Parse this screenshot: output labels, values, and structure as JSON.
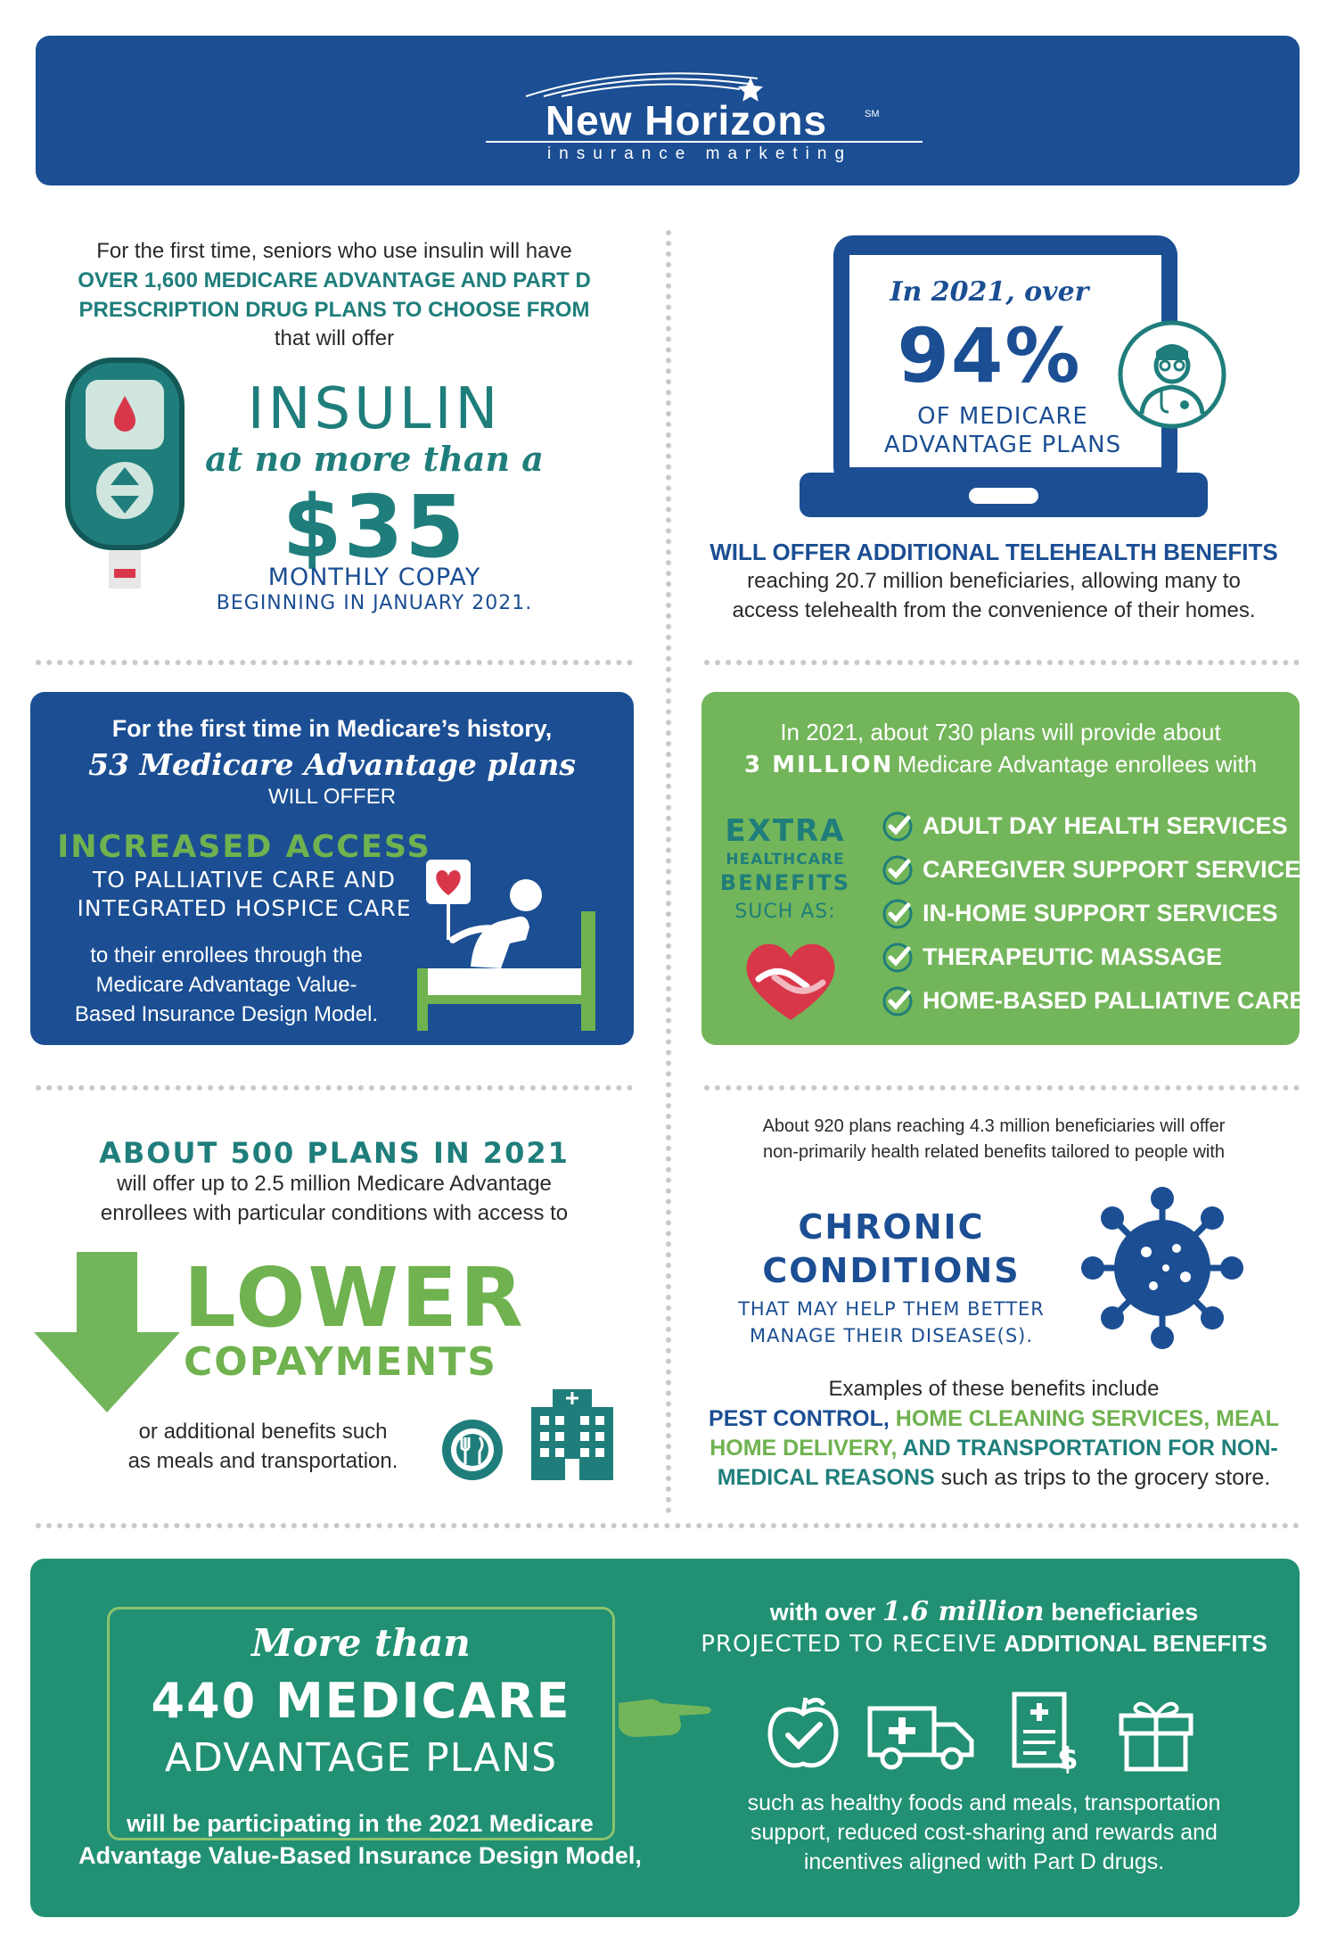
{
  "header": {
    "brand": "New Horizons",
    "sm": "SM",
    "tagline": "insurance marketing"
  },
  "insulin": {
    "intro1": "For the first time, seniors who use insulin will have",
    "highlight1": "OVER 1,600 MEDICARE ADVANTAGE AND PART D",
    "highlight2": "PRESCRIPTION DRUG PLANS TO CHOOSE FROM",
    "intro2": "that will offer",
    "big": "INSULIN",
    "script": "at no more than a",
    "price": "$35",
    "copay": "MONTHLY COPAY",
    "beginning": "BEGINNING IN JANUARY 2021."
  },
  "telehealth": {
    "year_line": "In 2021, over",
    "percent": "94%",
    "sub1": "OF MEDICARE",
    "sub2": "ADVANTAGE PLANS",
    "headline": "WILL OFFER ADDITIONAL TELEHEALTH BENEFITS",
    "body1": "reaching 20.7 million beneficiaries, allowing many to",
    "body2": "access telehealth from the convenience of their homes."
  },
  "palliative": {
    "line1": "For the first time in Medicare’s history,",
    "script": "53 Medicare Advantage plans",
    "will_offer": "WILL OFFER",
    "headline": "INCREASED ACCESS",
    "sub1": "TO PALLIATIVE CARE AND",
    "sub2": "INTEGRATED HOSPICE CARE",
    "body1": "to their enrollees through the",
    "body2": "Medicare Advantage Value-",
    "body3": "Based Insurance Design Model."
  },
  "extra": {
    "line1": "In 2021, about 730 plans will provide about",
    "line2_bold": "3 MILLION",
    "line2_rest": "Medicare Advantage enrollees with",
    "label1": "EXTRA",
    "label2": "HEALTHCARE",
    "label3": "BENEFITS",
    "label4": "SUCH AS:",
    "items": [
      "ADULT DAY HEALTH SERVICES",
      "CAREGIVER SUPPORT SERVICES",
      "IN-HOME SUPPORT SERVICES",
      "THERAPEUTIC MASSAGE",
      "HOME-BASED PALLIATIVE CARE"
    ]
  },
  "lower": {
    "headline": "ABOUT 500 PLANS IN 2021",
    "body1": "will offer up to 2.5 million Medicare Advantage",
    "body2": "enrollees with particular conditions with access to",
    "big1": "LOWER",
    "big2": "COPAYMENTS",
    "foot1": "or additional benefits such",
    "foot2": "as meals and transportation."
  },
  "chronic": {
    "intro1": "About 920 plans reaching 4.3 million beneficiaries will offer",
    "intro2": "non-primarily health related benefits tailored to people with",
    "big1": "CHRONIC",
    "big2": "CONDITIONS",
    "sub1": "THAT MAY HELP THEM BETTER",
    "sub2": "MANAGE THEIR DISEASE(S).",
    "examples": "Examples of these benefits include",
    "b1": "PEST CONTROL,",
    "b2": "HOME CLEANING SERVICES,",
    "b3": "MEAL",
    "b4": "HOME DELIVERY,",
    "b5": "AND TRANSPORTATION FOR NON-",
    "b6": "MEDICAL REASONS",
    "b7": "such as trips to the grocery store."
  },
  "footer": {
    "script": "More than",
    "big1": "440 MEDICARE",
    "big2": "ADVANTAGE PLANS",
    "body1": "will be participating in the 2021 Medicare",
    "body2": "Advantage Value-Based Insurance Design Model,",
    "r1a": "with over",
    "r1b": "1.6 million",
    "r1c": "beneficiaries",
    "r2a": "PROJECTED TO RECEIVE",
    "r2b": "ADDITIONAL BENEFITS",
    "r3": "such as healthy foods and meals, transportation",
    "r4": "support, reduced cost-sharing and rewards and",
    "r5": "incentives aligned with Part D drugs."
  },
  "colors": {
    "navy": "#1b4e93",
    "teal": "#1f7e7b",
    "green": "#6fb24f",
    "footer_green": "#219073",
    "red": "#d8374a"
  }
}
